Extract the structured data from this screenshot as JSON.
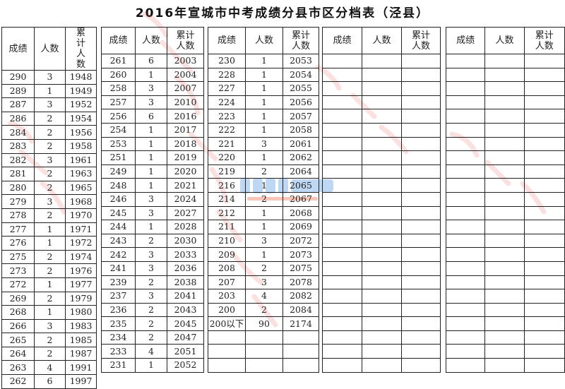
{
  "title": "2016年宣城市中考成绩分县市区分档表（泾县）",
  "headers": [
    "成绩",
    "人数",
    "累计人数"
  ],
  "blocks": [
    [
      [
        "290",
        "3",
        "1948"
      ],
      [
        "289",
        "1",
        "1949"
      ],
      [
        "287",
        "3",
        "1952"
      ],
      [
        "286",
        "2",
        "1954"
      ],
      [
        "284",
        "2",
        "1956"
      ],
      [
        "283",
        "2",
        "1958"
      ],
      [
        "282",
        "3",
        "1961"
      ],
      [
        "281",
        "2",
        "1963"
      ],
      [
        "280",
        "2",
        "1965"
      ],
      [
        "279",
        "3",
        "1968"
      ],
      [
        "278",
        "2",
        "1970"
      ],
      [
        "277",
        "1",
        "1971"
      ],
      [
        "276",
        "1",
        "1972"
      ],
      [
        "275",
        "2",
        "1974"
      ],
      [
        "273",
        "2",
        "1976"
      ],
      [
        "272",
        "1",
        "1977"
      ],
      [
        "269",
        "2",
        "1979"
      ],
      [
        "268",
        "1",
        "1980"
      ],
      [
        "266",
        "3",
        "1983"
      ],
      [
        "265",
        "2",
        "1985"
      ],
      [
        "264",
        "2",
        "1987"
      ],
      [
        "263",
        "4",
        "1991"
      ],
      [
        "262",
        "6",
        "1997"
      ]
    ],
    [
      [
        "261",
        "6",
        "2003"
      ],
      [
        "260",
        "1",
        "2004"
      ],
      [
        "258",
        "3",
        "2007"
      ],
      [
        "257",
        "3",
        "2010"
      ],
      [
        "256",
        "6",
        "2016"
      ],
      [
        "254",
        "1",
        "2017"
      ],
      [
        "253",
        "1",
        "2018"
      ],
      [
        "251",
        "1",
        "2019"
      ],
      [
        "249",
        "1",
        "2020"
      ],
      [
        "248",
        "1",
        "2021"
      ],
      [
        "246",
        "3",
        "2024"
      ],
      [
        "245",
        "3",
        "2027"
      ],
      [
        "244",
        "1",
        "2028"
      ],
      [
        "243",
        "2",
        "2030"
      ],
      [
        "242",
        "3",
        "2033"
      ],
      [
        "241",
        "3",
        "2036"
      ],
      [
        "239",
        "2",
        "2038"
      ],
      [
        "237",
        "3",
        "2041"
      ],
      [
        "236",
        "2",
        "2043"
      ],
      [
        "235",
        "2",
        "2045"
      ],
      [
        "234",
        "2",
        "2047"
      ],
      [
        "233",
        "4",
        "2051"
      ],
      [
        "231",
        "1",
        "2052"
      ]
    ],
    [
      [
        "230",
        "1",
        "2053"
      ],
      [
        "228",
        "1",
        "2054"
      ],
      [
        "227",
        "1",
        "2055"
      ],
      [
        "224",
        "1",
        "2056"
      ],
      [
        "223",
        "1",
        "2057"
      ],
      [
        "222",
        "1",
        "2058"
      ],
      [
        "221",
        "3",
        "2061"
      ],
      [
        "220",
        "1",
        "2062"
      ],
      [
        "219",
        "2",
        "2064"
      ],
      [
        "216",
        "1",
        "2065"
      ],
      [
        "214",
        "2",
        "2067"
      ],
      [
        "212",
        "1",
        "2068"
      ],
      [
        "211",
        "1",
        "2069"
      ],
      [
        "210",
        "3",
        "2072"
      ],
      [
        "209",
        "1",
        "2073"
      ],
      [
        "208",
        "2",
        "2075"
      ],
      [
        "207",
        "3",
        "2078"
      ],
      [
        "203",
        "4",
        "2082"
      ],
      [
        "200",
        "2",
        "2084"
      ],
      [
        "200以下",
        "90",
        "2174"
      ],
      [
        "",
        "",
        ""
      ],
      [
        "",
        "",
        ""
      ],
      [
        "",
        "",
        ""
      ]
    ],
    [],
    []
  ],
  "watermark": "宣城市教育体育局",
  "logo": {
    "main": "3773考试网",
    "sub": "3773.com.cn"
  }
}
